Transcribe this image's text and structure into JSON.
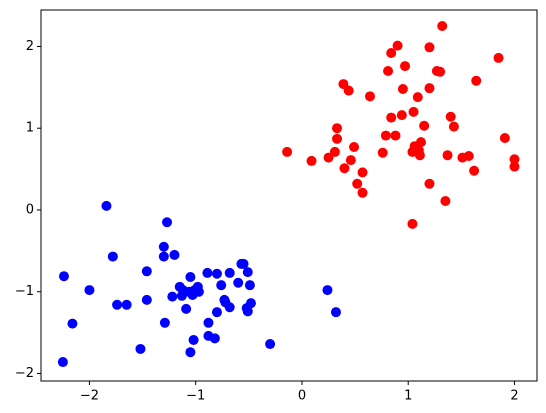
{
  "chart_data": {
    "type": "scatter",
    "xlim": [
      -2.456,
      2.212
    ],
    "ylim": [
      -2.092,
      2.446
    ],
    "xticks": [
      {
        "value": -2,
        "label": "−2"
      },
      {
        "value": -1,
        "label": "−1"
      },
      0,
      1,
      2
    ],
    "yticks": [
      {
        "value": -2,
        "label": "−2"
      },
      {
        "value": -1,
        "label": "−1"
      },
      0,
      1,
      2
    ],
    "series": [
      {
        "color": "#ff0000",
        "x": [
          1.32,
          1.2,
          0.9,
          0.84,
          1.85,
          0.97,
          0.81,
          1.27,
          1.3,
          1.64,
          0.39,
          0.44,
          0.64,
          1.09,
          0.95,
          1.2,
          1.05,
          0.84,
          0.94,
          1.4,
          0.33,
          1.43,
          1.15,
          0.79,
          0.88,
          0.33,
          1.12,
          1.91,
          0.49,
          -0.14,
          1.04,
          1.1,
          0.76,
          1.06,
          0.31,
          0.25,
          0.09,
          0.46,
          1.11,
          1.37,
          1.51,
          1.57,
          2.0,
          0.4,
          0.57,
          1.62,
          2.0,
          1.2,
          0.52,
          0.57,
          1.35,
          1.04
        ],
        "y": [
          2.25,
          1.99,
          2.01,
          1.92,
          1.86,
          1.76,
          1.7,
          1.7,
          1.69,
          1.58,
          1.54,
          1.46,
          1.39,
          1.38,
          1.48,
          1.49,
          1.2,
          1.13,
          1.16,
          1.14,
          1.0,
          1.02,
          1.03,
          0.91,
          0.91,
          0.87,
          0.83,
          0.88,
          0.77,
          0.71,
          0.71,
          0.73,
          0.7,
          0.78,
          0.71,
          0.64,
          0.6,
          0.61,
          0.67,
          0.67,
          0.64,
          0.66,
          0.62,
          0.51,
          0.46,
          0.48,
          0.53,
          0.32,
          0.32,
          0.21,
          0.11,
          -0.17
        ]
      },
      {
        "color": "#0000ff",
        "x": [
          -1.84,
          -1.27,
          -1.3,
          -1.2,
          -1.78,
          -1.3,
          -1.46,
          -0.55,
          -0.57,
          -0.51,
          -0.89,
          -0.68,
          -0.8,
          -1.05,
          -0.6,
          -0.76,
          -1.15,
          -1.22,
          -0.49,
          -1.74,
          -1.65,
          -1.46,
          -1.12,
          -1.06,
          -1.01,
          -0.97,
          -0.98,
          -0.73,
          -0.72,
          -0.68,
          -1.03,
          -1.13,
          -1.09,
          -0.8,
          -0.51,
          -0.52,
          -0.48,
          0.24,
          0.32,
          -1.29,
          -0.88,
          -2.16,
          -0.82,
          -1.02,
          -0.88,
          -1.52,
          -0.3,
          -1.05,
          -2.25,
          -2.0,
          -2.24
        ],
        "y": [
          0.05,
          -0.15,
          -0.45,
          -0.55,
          -0.57,
          -0.57,
          -0.75,
          -0.66,
          -0.66,
          -0.76,
          -0.77,
          -0.77,
          -0.78,
          -0.82,
          -0.89,
          -0.92,
          -0.94,
          -1.06,
          -0.92,
          -1.16,
          -1.16,
          -1.1,
          -0.98,
          -1.0,
          -0.98,
          -1.0,
          -0.94,
          -1.1,
          -1.13,
          -1.19,
          -1.04,
          -1.05,
          -1.21,
          -1.25,
          -1.24,
          -1.2,
          -1.14,
          -0.98,
          -1.25,
          -1.38,
          -1.38,
          -1.39,
          -1.57,
          -1.59,
          -1.54,
          -1.7,
          -1.64,
          -1.74,
          -1.86,
          -0.98,
          -0.81
        ]
      }
    ]
  }
}
